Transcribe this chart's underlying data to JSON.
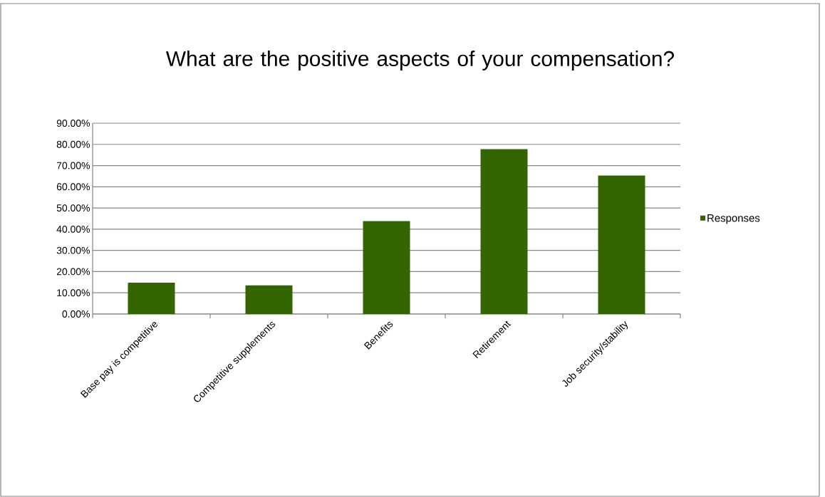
{
  "chart_data": {
    "type": "bar",
    "title": "What are the positive aspects of your compensation?",
    "categories": [
      "Base pay is competitive",
      "Competitive supplements",
      "Benefits",
      "Retirement",
      "Job security/stability"
    ],
    "series": [
      {
        "name": "Responses",
        "color": "#336600",
        "values": [
          14.8,
          13.5,
          43.8,
          77.7,
          65.3
        ]
      }
    ],
    "ylim": [
      0,
      90
    ],
    "yticks": [
      {
        "value": 0,
        "label": "0.00%"
      },
      {
        "value": 10,
        "label": "10.00%"
      },
      {
        "value": 20,
        "label": "20.00%"
      },
      {
        "value": 30,
        "label": "30.00%"
      },
      {
        "value": 40,
        "label": "40.00%"
      },
      {
        "value": 50,
        "label": "50.00%"
      },
      {
        "value": 60,
        "label": "60.00%"
      },
      {
        "value": 70,
        "label": "70.00%"
      },
      {
        "value": 80,
        "label": "80.00%"
      },
      {
        "value": 90,
        "label": "90.00%"
      }
    ],
    "grid": "y",
    "legend": "right"
  }
}
